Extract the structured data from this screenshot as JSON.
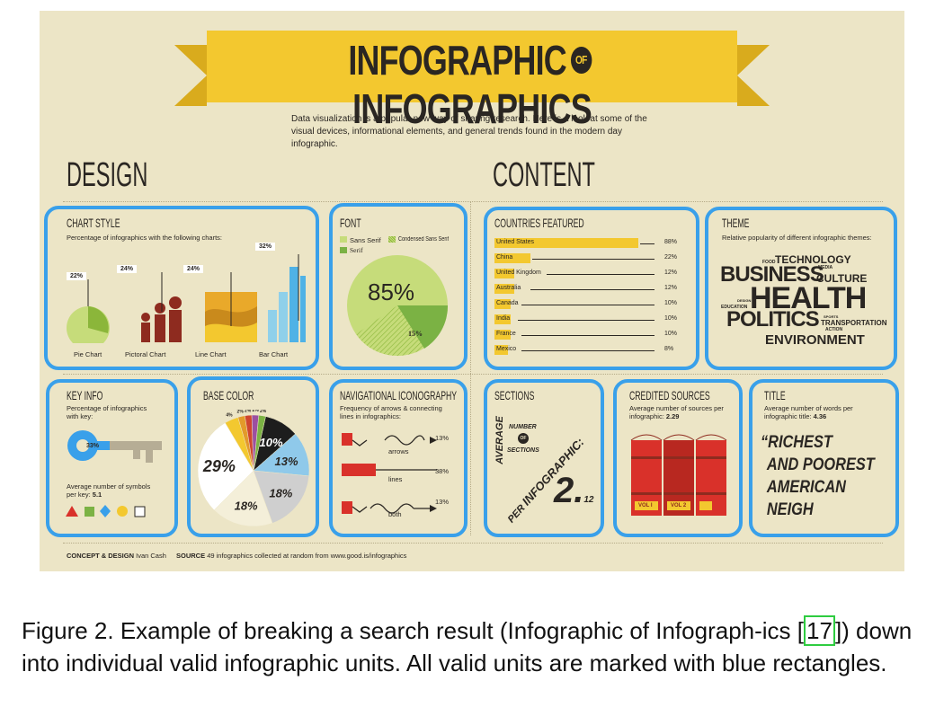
{
  "title": {
    "left": "INFOGRAPHIC",
    "of": "OF",
    "right": "INFOGRAPHICS"
  },
  "intro": "Data visualization is a popular new way of sharing research. Here is a look at some of the visual devices, informational elements, and general trends found in the modern day infographic.",
  "sections": {
    "design": "DESIGN",
    "content": "CONTENT"
  },
  "chart_style": {
    "title": "CHART STYLE",
    "subtitle": "Percentage of infographics with the following charts:",
    "items": [
      {
        "label": "Pie Chart",
        "value": "22%"
      },
      {
        "label": "Pictoral Chart",
        "value": "24%"
      },
      {
        "label": "Line Chart",
        "value": "24%"
      },
      {
        "label": "Bar Chart",
        "value": "32%"
      }
    ]
  },
  "font": {
    "title": "FONT",
    "legend": [
      "Sans Serif",
      "Condensed Sans Serif",
      "Serif"
    ],
    "big_value": "85%",
    "small_value": "15%"
  },
  "countries": {
    "title": "COUNTRIES FEATURED",
    "rows": [
      {
        "name": "United States",
        "value": "88%",
        "pct": 88
      },
      {
        "name": "China",
        "value": "22%",
        "pct": 22
      },
      {
        "name": "United Kingdom",
        "value": "12%",
        "pct": 12
      },
      {
        "name": "Australia",
        "value": "12%",
        "pct": 12
      },
      {
        "name": "Canada",
        "value": "10%",
        "pct": 10
      },
      {
        "name": "India",
        "value": "10%",
        "pct": 10
      },
      {
        "name": "France",
        "value": "10%",
        "pct": 10
      },
      {
        "name": "Mexico",
        "value": "8%",
        "pct": 8
      }
    ]
  },
  "theme": {
    "title": "THEME",
    "subtitle": "Relative popularity of different infographic themes:",
    "words": {
      "food": "FOOD",
      "technology": "TECHNOLOGY",
      "business": "BUSINESS",
      "media": "MEDIA",
      "culture": "CULTURE",
      "design": "DESIGN",
      "education": "EDUCATION",
      "health": "HEALTH",
      "politics": "POLITICS",
      "sports": "SPORTS",
      "transportation": "TRANSPORTATION",
      "action": "ACTION",
      "environment": "ENVIRONMENT"
    }
  },
  "key_info": {
    "title": "KEY INFO",
    "subtitle": "Percentage of infographics with key:",
    "value": "33%",
    "avg_text": "Average number of symbols per key:",
    "avg_value": "5.1"
  },
  "base_color": {
    "title": "BASE COLOR",
    "slices": [
      {
        "label": "29%",
        "value": 29,
        "color": "#ffffff"
      },
      {
        "label": "18%",
        "value": 18,
        "color": "#f4efd9"
      },
      {
        "label": "18%",
        "value": 18,
        "color": "#cfcfcf"
      },
      {
        "label": "13%",
        "value": 13,
        "color": "#8fc9ea"
      },
      {
        "label": "10%",
        "value": 10,
        "color": "#1d1d1d"
      },
      {
        "label": "4%",
        "value": 4,
        "color": "#f3c82f"
      },
      {
        "label": "2%",
        "value": 2,
        "color": "#e39a2a"
      },
      {
        "label": "2%",
        "value": 2,
        "color": "#d0452f"
      },
      {
        "label": "2%",
        "value": 2,
        "color": "#9c4fa0"
      },
      {
        "label": "2%",
        "value": 2,
        "color": "#7bb244"
      }
    ]
  },
  "navigation": {
    "title": "NAVIGATIONAL ICONOGRAPHY",
    "subtitle": "Frequency of arrows & connecting lines in infographics:",
    "items": [
      {
        "label": "arrows",
        "value": "13%"
      },
      {
        "label": "lines",
        "value": "38%"
      },
      {
        "label": "both",
        "value": "13%"
      }
    ]
  },
  "sections_card": {
    "title": "SECTIONS",
    "average": "AVERAGE",
    "number": "NUMBER",
    "of": "OF",
    "sections": "SECTIONS",
    "per": "PER",
    "infographic": "INFOGRAPHIC:",
    "value_main": "2.",
    "value_dec": "12"
  },
  "credited": {
    "title": "CREDITED SOURCES",
    "subtitle": "Average number of sources per infographic:",
    "value": "2.29",
    "vol1": "VOL I",
    "vol2": "VOL 2"
  },
  "title_card": {
    "title": "TITLE",
    "subtitle": "Average number of words per infographic title:",
    "value": "4.36",
    "quote": [
      "“RICHEST",
      "AND POOREST",
      "AMERICAN",
      "NEIGH"
    ]
  },
  "footer": {
    "concept_label": "CONCEPT & DESIGN",
    "concept_name": "Ivan Cash",
    "source_label": "SOURCE",
    "source_text": "49 infographics collected at random from www.good.is/infographics"
  },
  "caption": {
    "before": "Figure 2.  Example of breaking a search result (Infographic of Infograph-ics ",
    "cite_open": "[",
    "cite": "17",
    "cite_close": "]",
    "after": ") down into individual valid infographic units.  All valid units are marked with blue rectangles."
  },
  "colors": {
    "accent_blue": "#39a0ea",
    "yellow": "#f3c82f",
    "background": "#ece5c6",
    "dark_red": "#8e2b1f",
    "red": "#d9312a",
    "green": "#7bb244",
    "light_green": "#c6dc7a"
  }
}
